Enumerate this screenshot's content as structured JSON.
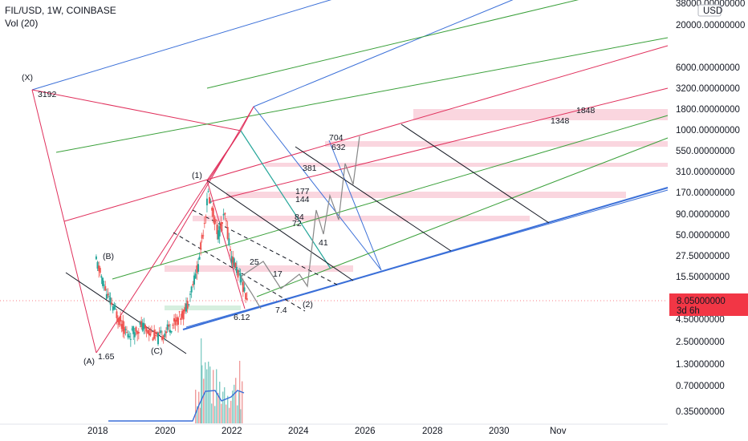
{
  "header": {
    "symbol": "FIL/USD, 1W, COINBASE",
    "volume": "Vol (20)"
  },
  "currency_badge": "USD",
  "price_tag": {
    "value": "8.05000000",
    "countdown": "3d 6h",
    "color": "#f23645"
  },
  "colors": {
    "blue": "#3a6fd8",
    "green": "#3aa03a",
    "red": "#e0305c",
    "black": "#131722",
    "teal": "#26a69a",
    "pink_zone": "#f8c8d4",
    "green_zone": "#c8ead4",
    "projection": "#888888"
  },
  "chart_data": {
    "type": "line",
    "title": "FIL/USD, 1W, COINBASE",
    "y_scale": "log",
    "y_ticks": [
      "38000.00000000",
      "20000.00000000",
      "6000.00000000",
      "3200.00000000",
      "1800.00000000",
      "1000.00000000",
      "550.00000000",
      "310.00000000",
      "170.00000000",
      "90.00000000",
      "50.00000000",
      "27.50000000",
      "15.50000000",
      "4.50000000",
      "2.50000000",
      "1.30000000",
      "0.70000000",
      "0.35000000"
    ],
    "x_ticks": [
      "2018",
      "2020",
      "2022",
      "2024",
      "2026",
      "2028",
      "2030",
      "Nov"
    ],
    "last_price": 8.05,
    "wave_labels": [
      {
        "label": "(X)",
        "date": "2017-12"
      },
      {
        "label": "(A)",
        "date": "2017-12"
      },
      {
        "label": "(B)",
        "date": "2018-01"
      },
      {
        "label": "(C)",
        "date": "2019-12"
      },
      {
        "label": "(1)",
        "date": "2021-04"
      },
      {
        "label": "(2)",
        "date": "2022-12"
      }
    ],
    "price_annotations": [
      "3192",
      "1.65",
      "6.12",
      "7.4",
      "25",
      "17",
      "41",
      "72",
      "84",
      "144",
      "177",
      "381",
      "632",
      "704",
      "1348",
      "1848"
    ],
    "series": [
      {
        "name": "Vol (20)",
        "type": "volume"
      }
    ]
  }
}
